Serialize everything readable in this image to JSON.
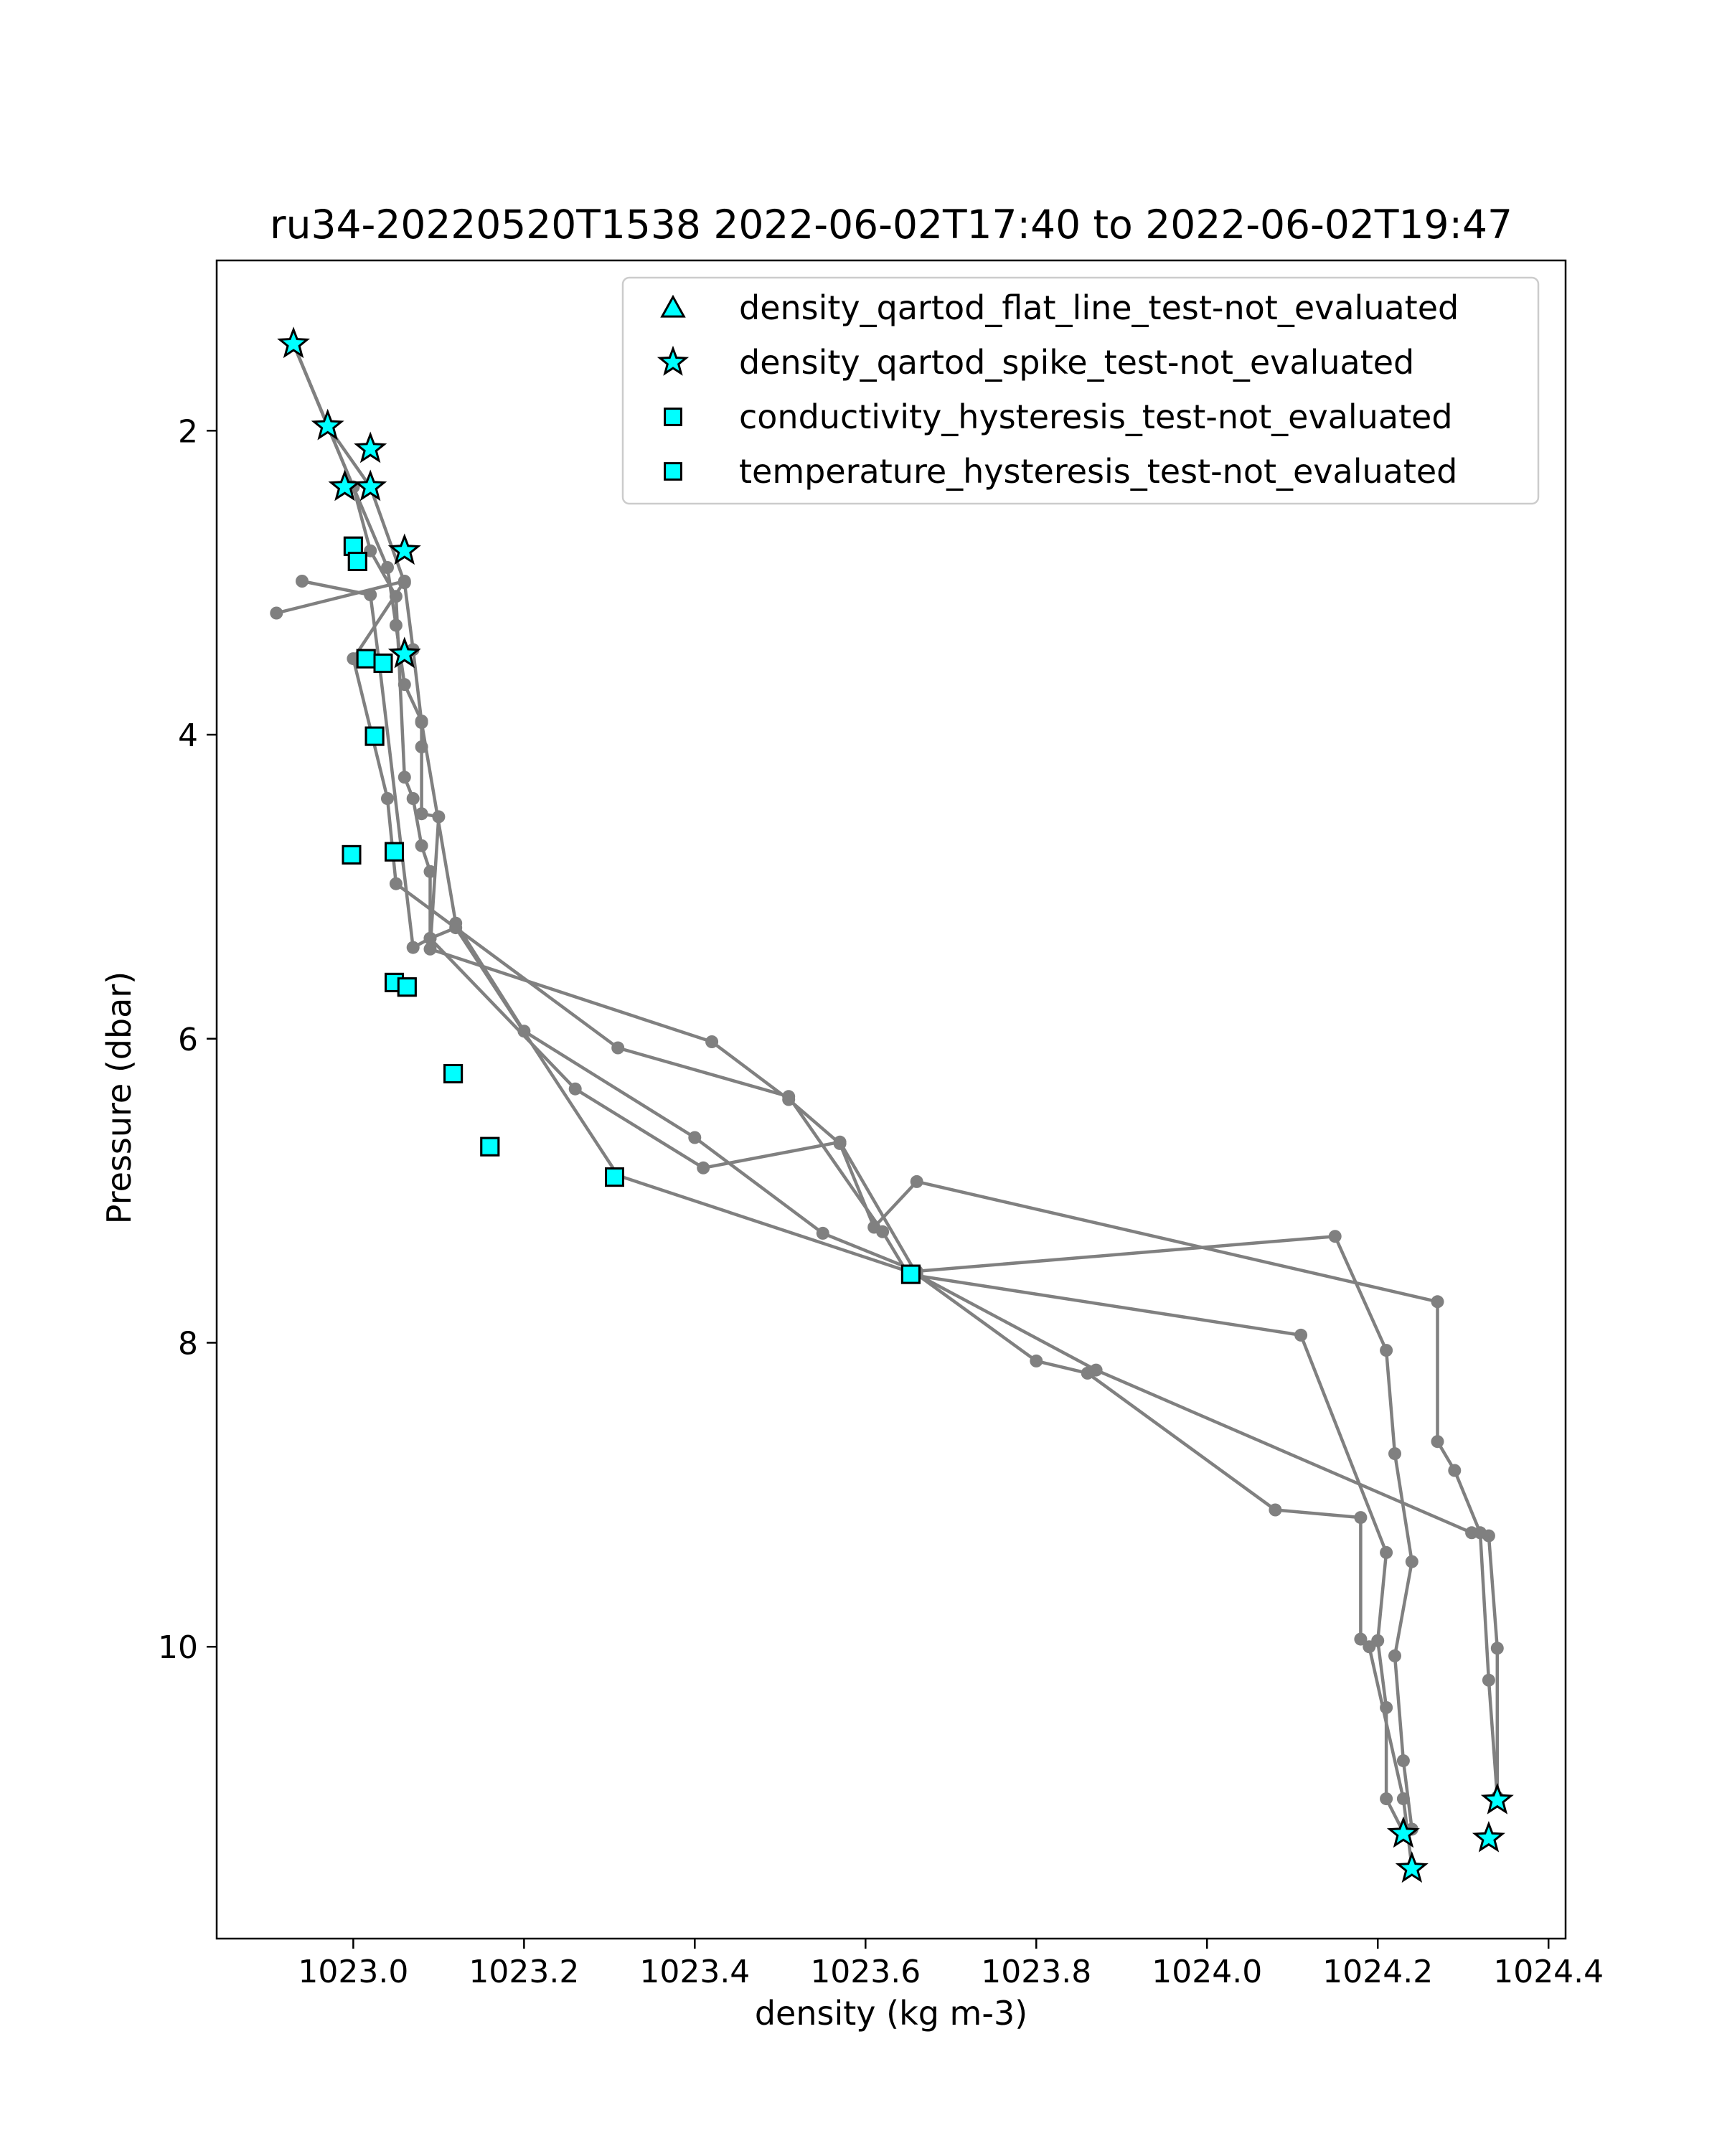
{
  "chart_data": {
    "type": "scatter",
    "title": "ru34-20220520T1538 2022-06-02T17:40 to 2022-06-02T19:47",
    "xlabel": "density (kg m-3)",
    "ylabel": "Pressure (dbar)",
    "xlim": [
      1022.84,
      1024.42
    ],
    "ylim": [
      11.92,
      0.88
    ],
    "y_inverted": true,
    "grid": false,
    "legend_position": "top-right",
    "xticks": [
      1023.0,
      1023.2,
      1023.4,
      1023.6,
      1023.8,
      1024.0,
      1024.2,
      1024.4
    ],
    "xtick_labels": [
      "1023.0",
      "1023.2",
      "1023.4",
      "1023.6",
      "1023.8",
      "1024.0",
      "1024.2",
      "1024.4"
    ],
    "yticks": [
      2,
      4,
      6,
      8,
      10
    ],
    "ytick_labels": [
      "2",
      "4",
      "6",
      "8",
      "10"
    ],
    "colors": {
      "profile_line": "#808080",
      "flag_fill": "#00ffff",
      "flag_edge": "#000000",
      "legend_border": "#cccccc",
      "axes": "#000000"
    },
    "profile": {
      "name": "density",
      "x": [
        1022.93,
        1022.97,
        1023.0,
        1023.04,
        1023.05,
        1023.06,
        1023.08,
        1023.08,
        1023.08,
        1023.1,
        1023.09,
        1023.42,
        1023.51,
        1023.57,
        1023.61,
        1023.66,
        1024.27,
        1024.27,
        1024.29,
        1024.32,
        1024.33,
        1024.34,
        1022.93,
        1022.97,
        1023.02,
        1023.06,
        1023.07,
        1023.08,
        1023.12,
        1023.2,
        1023.4,
        1023.55,
        1023.66,
        1024.15,
        1024.21,
        1024.22,
        1024.24,
        1024.22,
        1024.23,
        1024.24,
        1022.93,
        1023.0,
        1023.02,
        1023.05,
        1023.06,
        1023.07,
        1023.08,
        1023.09,
        1023.09,
        1023.26,
        1023.41,
        1023.57,
        1023.66,
        1023.8,
        1023.86,
        1024.08,
        1024.18,
        1024.18,
        1024.19,
        1024.23,
        1024.24,
        1022.91,
        1023.06,
        1023.0,
        1023.04,
        1023.05,
        1023.31,
        1023.51,
        1023.62,
        1023.65,
        1024.11,
        1024.21,
        1024.2,
        1024.21,
        1024.21,
        1024.23,
        1022.94,
        1023.02,
        1023.03,
        1023.07,
        1023.09,
        1023.12,
        1023.31,
        1023.66,
        1023.87,
        1024.31,
        1024.33,
        1024.34,
        1024.34
      ],
      "y": [
        1.43,
        1.97,
        2.37,
        2.9,
        3.28,
        3.67,
        3.91,
        4.08,
        4.52,
        4.54,
        5.41,
        6.02,
        6.4,
        6.69,
        7.24,
        6.94,
        7.73,
        8.65,
        8.84,
        9.25,
        10.22,
        10.99,
        1.43,
        1.97,
        2.37,
        3.0,
        3.44,
        3.92,
        5.24,
        5.95,
        6.65,
        7.28,
        7.53,
        7.3,
        8.05,
        8.73,
        9.44,
        10.06,
        10.75,
        11.2,
        1.43,
        2.37,
        2.79,
        3.09,
        4.28,
        4.42,
        4.73,
        4.9,
        5.34,
        6.33,
        6.85,
        6.68,
        7.55,
        8.12,
        8.2,
        9.1,
        9.15,
        9.95,
        10.0,
        11.0,
        11.45,
        3.2,
        2.99,
        3.5,
        4.42,
        4.98,
        6.06,
        6.38,
        7.27,
        7.55,
        7.95,
        9.38,
        9.96,
        10.4,
        11.0,
        11.22,
        2.99,
        3.08,
        3.51,
        5.4,
        5.34,
        5.27,
        6.9,
        7.55,
        8.18,
        9.25,
        9.27,
        10.01,
        10.99
      ],
      "segments": [
        [
          0,
          21
        ],
        [
          22,
          39
        ],
        [
          40,
          60
        ],
        [
          61,
          75
        ],
        [
          76,
          88
        ]
      ]
    },
    "series": [
      {
        "name": "density_qartod_flat_line_test-not_evaluated",
        "marker": "triangle",
        "x": [],
        "y": []
      },
      {
        "name": "density_qartod_spike_test-not_evaluated",
        "marker": "star",
        "x": [
          1022.93,
          1022.97,
          1023.02,
          1022.99,
          1023.02,
          1023.06,
          1023.06,
          1024.34,
          1024.33,
          1024.23,
          1024.24
        ],
        "y": [
          1.43,
          1.97,
          2.12,
          2.37,
          2.37,
          2.79,
          3.47,
          11.01,
          11.26,
          11.23,
          11.46
        ]
      },
      {
        "name": "conductivity_hysteresis_test-not_evaluated",
        "marker": "square",
        "x": [
          1023.0,
          1023.005,
          1023.015,
          1023.025,
          1023.035,
          1022.998,
          1023.048,
          1023.048,
          1023.063,
          1023.117,
          1023.16,
          1023.306,
          1023.653
        ],
        "y": [
          2.76,
          2.86,
          3.5,
          4.01,
          3.53,
          4.79,
          4.77,
          5.63,
          5.66,
          6.23,
          6.71,
          6.91,
          7.55
        ]
      },
      {
        "name": "temperature_hysteresis_test-not_evaluated",
        "marker": "square",
        "x": [
          1023.0,
          1023.005,
          1023.015,
          1023.025,
          1023.035,
          1022.998,
          1023.048,
          1023.048,
          1023.063,
          1023.117,
          1023.16,
          1023.306,
          1023.653
        ],
        "y": [
          2.76,
          2.86,
          3.5,
          4.01,
          3.53,
          4.79,
          4.77,
          5.63,
          5.66,
          6.23,
          6.71,
          6.91,
          7.55
        ]
      }
    ]
  }
}
